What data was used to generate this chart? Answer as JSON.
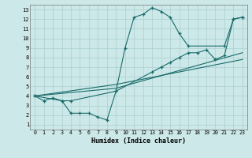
{
  "xlabel": "Humidex (Indice chaleur)",
  "xlim": [
    -0.5,
    23.5
  ],
  "ylim": [
    0.5,
    13.5
  ],
  "xticks": [
    0,
    1,
    2,
    3,
    4,
    5,
    6,
    7,
    8,
    9,
    10,
    11,
    12,
    13,
    14,
    15,
    16,
    17,
    18,
    19,
    20,
    21,
    22,
    23
  ],
  "yticks": [
    1,
    2,
    3,
    4,
    5,
    6,
    7,
    8,
    9,
    10,
    11,
    12,
    13
  ],
  "bg_color": "#cce8e8",
  "grid_color": "#aacfcf",
  "line_color": "#1a6b6b",
  "line1_x": [
    0,
    1,
    2,
    3,
    4,
    5,
    6,
    7,
    8,
    9,
    10,
    11,
    12,
    13,
    14,
    15,
    16,
    17,
    21,
    22,
    23
  ],
  "line1_y": [
    4.0,
    3.5,
    3.8,
    3.5,
    2.2,
    2.2,
    2.2,
    1.8,
    1.5,
    4.5,
    9.0,
    12.2,
    12.5,
    13.2,
    12.8,
    12.2,
    10.5,
    9.2,
    9.2,
    12.0,
    12.2
  ],
  "line2_x": [
    0,
    3,
    4,
    9,
    13,
    14,
    15,
    16,
    17,
    18,
    19,
    20,
    21,
    22,
    23
  ],
  "line2_y": [
    4.0,
    3.5,
    3.5,
    4.5,
    6.5,
    7.0,
    7.5,
    8.0,
    8.5,
    8.5,
    8.8,
    7.8,
    8.2,
    12.0,
    12.2
  ],
  "line3_x": [
    0,
    9,
    23
  ],
  "line3_y": [
    4.0,
    4.8,
    8.5
  ],
  "line4_x": [
    0,
    9,
    23
  ],
  "line4_y": [
    4.0,
    5.2,
    7.8
  ]
}
